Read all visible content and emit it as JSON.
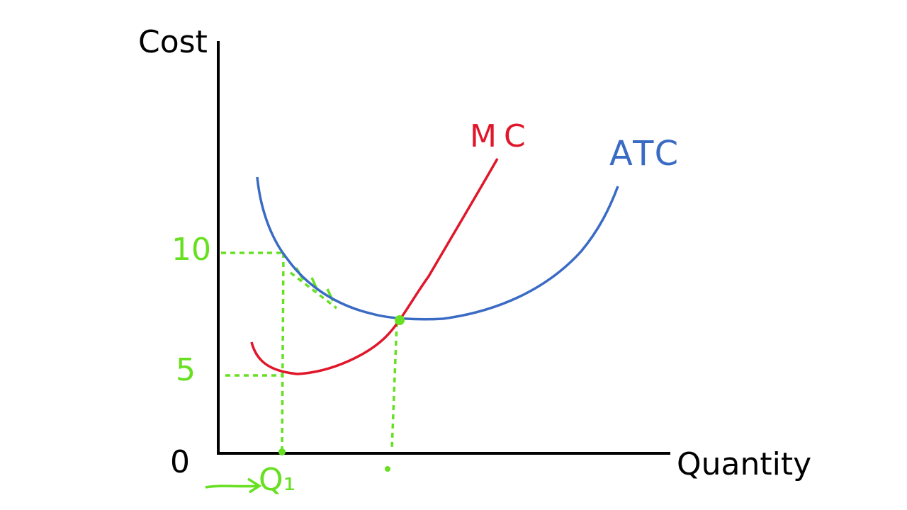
{
  "diagram": {
    "y_axis_label": "Cost",
    "x_axis_label": "Quantity",
    "origin_label": "0",
    "y_labels": [
      "10",
      "5"
    ],
    "curves": [
      {
        "label": "MC",
        "color": "#e0162a"
      },
      {
        "label": "ATC",
        "color": "#3a6bc4"
      }
    ],
    "x_point_label": "Q₁"
  }
}
